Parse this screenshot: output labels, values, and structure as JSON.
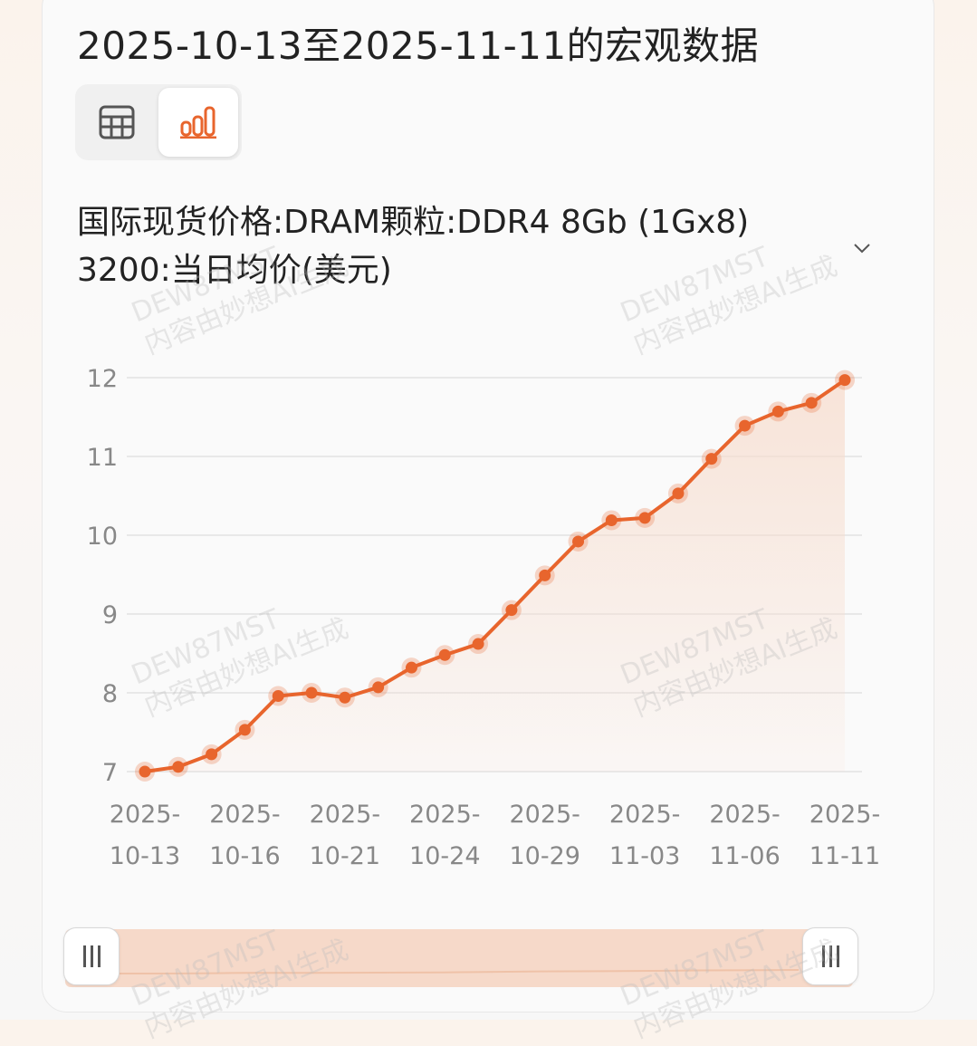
{
  "page": {
    "title": "2025-10-13至2025-11-11的宏观数据"
  },
  "view_toggle": {
    "active": "chart",
    "options": [
      "table-icon",
      "bar-chart-icon"
    ]
  },
  "series": {
    "title": "国际现货价格:DRAM颗粒:DDR4 8Gb (1Gx8) 3200:当日均价(美元)"
  },
  "watermark": {
    "line1": "DEW87MST",
    "line2": "内容由妙想AI生成"
  },
  "colors": {
    "accent": "#e8652d",
    "fill": "#f7dccd",
    "grid": "#e2e2e2",
    "tick": "#888888"
  },
  "chart_data": {
    "type": "line",
    "title": "国际现货价格:DRAM颗粒:DDR4 8Gb (1Gx8) 3200:当日均价(美元)",
    "x": [
      "2025-10-13",
      "2025-10-14",
      "2025-10-15",
      "2025-10-16",
      "2025-10-17",
      "2025-10-20",
      "2025-10-21",
      "2025-10-22",
      "2025-10-23",
      "2025-10-24",
      "2025-10-27",
      "2025-10-28",
      "2025-10-29",
      "2025-10-30",
      "2025-10-31",
      "2025-11-03",
      "2025-11-04",
      "2025-11-05",
      "2025-11-06",
      "2025-11-07",
      "2025-11-10",
      "2025-11-11"
    ],
    "series": [
      {
        "values": [
          7.0,
          7.06,
          7.22,
          7.53,
          7.96,
          8.0,
          7.94,
          8.07,
          8.32,
          8.48,
          8.62,
          9.05,
          9.49,
          9.92,
          10.19,
          10.22,
          10.53,
          10.97,
          11.39,
          11.57,
          11.68,
          11.97
        ]
      }
    ],
    "x_tick_labels": [
      {
        "top": "2025-",
        "bottom": "10-13"
      },
      {
        "top": "2025-",
        "bottom": "10-16"
      },
      {
        "top": "2025-",
        "bottom": "10-21"
      },
      {
        "top": "2025-",
        "bottom": "10-24"
      },
      {
        "top": "2025-",
        "bottom": "10-29"
      },
      {
        "top": "2025-",
        "bottom": "11-03"
      },
      {
        "top": "2025-",
        "bottom": "11-06"
      },
      {
        "top": "2025-",
        "bottom": "11-11"
      }
    ],
    "x_tick_indices": [
      0,
      3,
      6,
      9,
      12,
      15,
      18,
      21
    ],
    "y_ticks": [
      7,
      8,
      9,
      10,
      11,
      12
    ],
    "ylim": [
      7,
      12
    ],
    "grid": true,
    "legend": "none",
    "area_fill": true,
    "zoom_slider": {
      "start": 0,
      "end": 1
    }
  }
}
